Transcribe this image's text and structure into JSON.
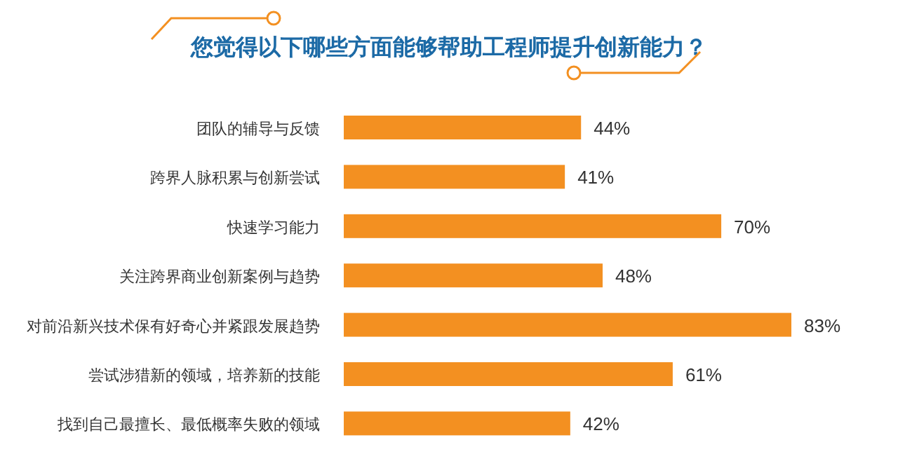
{
  "chart_data": {
    "type": "bar",
    "orientation": "horizontal",
    "title": "您觉得以下哪些方面能够帮助工程师提升创新能力？",
    "categories": [
      "团队的辅导与反馈",
      "跨界人脉积累与创新尝试",
      "快速学习能力",
      "关注跨界商业创新案例与趋势",
      "对前沿新兴技术保有好奇心并紧跟发展趋势",
      "尝试涉猎新的领域，培养新的技能",
      "找到自己最擅长、最低概率失败的领域"
    ],
    "values": [
      44,
      41,
      70,
      48,
      83,
      61,
      42
    ],
    "value_labels": [
      "44%",
      "41%",
      "70%",
      "48%",
      "83%",
      "61%",
      "42%"
    ],
    "color": "#f39021"
  }
}
